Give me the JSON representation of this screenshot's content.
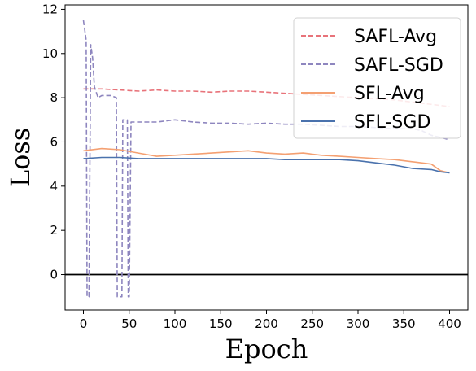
{
  "chart_data": {
    "type": "line",
    "title": "",
    "xlabel": "Epoch",
    "ylabel": "Loss",
    "xlim": [
      -20,
      420
    ],
    "ylim": [
      -1.6,
      12.2
    ],
    "xticks": [
      0,
      50,
      100,
      150,
      200,
      250,
      300,
      350,
      400
    ],
    "yticks": [
      0,
      2,
      4,
      6,
      8,
      10,
      12
    ],
    "reference_line": {
      "y": 0,
      "color": "#000000"
    },
    "grid": false,
    "legend_position": "top-right",
    "series": [
      {
        "name": "SAFL-Avg",
        "color": "#e8737a",
        "dash": "dashed",
        "x": [
          0,
          20,
          40,
          60,
          80,
          100,
          120,
          140,
          160,
          180,
          200,
          220,
          240,
          260,
          280,
          300,
          320,
          340,
          360,
          380,
          400
        ],
        "y": [
          8.4,
          8.4,
          8.35,
          8.3,
          8.35,
          8.3,
          8.3,
          8.25,
          8.3,
          8.3,
          8.25,
          8.2,
          8.15,
          8.1,
          8.05,
          8.0,
          7.95,
          7.9,
          7.8,
          7.7,
          7.6
        ]
      },
      {
        "name": "SAFL-SGD",
        "color": "#8e86bf",
        "dash": "dashed",
        "x": [
          0,
          3,
          4,
          6,
          8,
          10,
          12,
          16,
          20,
          30,
          36,
          37,
          40,
          42,
          43,
          45,
          48,
          49,
          50,
          52,
          60,
          80,
          100,
          120,
          140,
          160,
          180,
          200,
          220,
          240,
          260,
          280,
          300,
          320,
          340,
          360,
          370,
          380,
          390,
          400
        ],
        "y": [
          11.5,
          10.6,
          -1.0,
          -1.0,
          10.4,
          9.8,
          8.5,
          8.0,
          8.1,
          8.1,
          8.0,
          -1.0,
          -1.0,
          -1.0,
          7.0,
          7.0,
          7.0,
          -1.0,
          -1.0,
          6.9,
          6.9,
          6.9,
          7.0,
          6.9,
          6.85,
          6.85,
          6.8,
          6.85,
          6.8,
          6.8,
          6.75,
          6.7,
          6.7,
          6.65,
          6.6,
          6.6,
          6.5,
          6.3,
          6.2,
          6.1
        ]
      },
      {
        "name": "SFL-Avg",
        "color": "#f4a072",
        "dash": "solid",
        "x": [
          0,
          20,
          40,
          60,
          80,
          100,
          120,
          140,
          160,
          180,
          200,
          220,
          240,
          260,
          280,
          300,
          320,
          340,
          360,
          380,
          390,
          400
        ],
        "y": [
          5.6,
          5.7,
          5.65,
          5.5,
          5.35,
          5.4,
          5.45,
          5.5,
          5.55,
          5.6,
          5.5,
          5.45,
          5.5,
          5.4,
          5.35,
          5.3,
          5.25,
          5.2,
          5.1,
          5.0,
          4.7,
          4.6
        ]
      },
      {
        "name": "SFL-SGD",
        "color": "#4a72ad",
        "dash": "solid",
        "x": [
          0,
          20,
          40,
          60,
          80,
          100,
          120,
          140,
          160,
          180,
          200,
          220,
          240,
          260,
          280,
          300,
          320,
          340,
          360,
          380,
          390,
          400
        ],
        "y": [
          5.25,
          5.3,
          5.3,
          5.25,
          5.25,
          5.25,
          5.25,
          5.25,
          5.25,
          5.25,
          5.25,
          5.2,
          5.2,
          5.2,
          5.2,
          5.15,
          5.05,
          4.95,
          4.8,
          4.75,
          4.65,
          4.6
        ]
      }
    ]
  }
}
